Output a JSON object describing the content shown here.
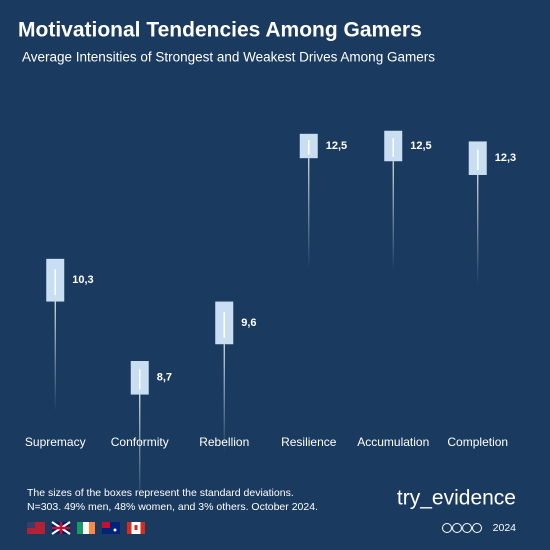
{
  "chart_data": {
    "type": "box",
    "title": "Motivational Tendencies Among Gamers",
    "subtitle": "Average Intensities of Strongest and Weakest Drives Among Gamers",
    "categories": [
      "Supremacy",
      "Conformity",
      "Rebellion",
      "Resilience",
      "Accumulation",
      "Completion"
    ],
    "values": [
      10.3,
      8.7,
      9.6,
      12.5,
      12.5,
      12.3
    ],
    "value_labels": [
      "10,3",
      "8,7",
      "9,6",
      "12,5",
      "12,5",
      "12,3"
    ],
    "sd": [
      0.7,
      0.55,
      0.7,
      0.4,
      0.5,
      0.55
    ],
    "ylim": [
      6.5,
      13.5
    ],
    "color": "#c9dff1"
  },
  "footer": {
    "notes": [
      "The sizes of the boxes represent the standard deviations.",
      "N=303. 49% men, 48% women, and 3% others. October 2024."
    ],
    "brand": "try_evidence",
    "year": "2024"
  }
}
